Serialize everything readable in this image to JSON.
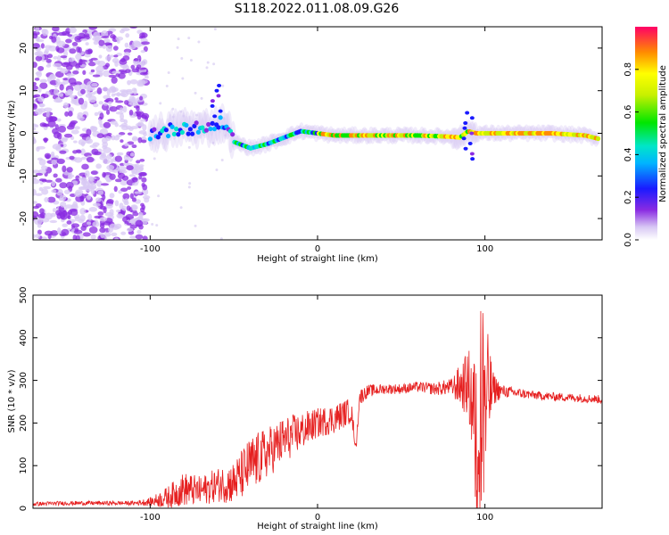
{
  "title": "S118.2022.011.08.09.G26",
  "chart_data": [
    {
      "type": "heatmap",
      "xlabel": "Height of straight line (km)",
      "ylabel": "Frequency (Hz)",
      "xlim": [
        -170,
        170
      ],
      "ylim": [
        -25,
        25
      ],
      "xticks": [
        -100,
        0,
        100
      ],
      "yticks": [
        -20,
        -10,
        0,
        10,
        20
      ],
      "colorbar": {
        "label": "Normalized spectral amplitude",
        "range": [
          0,
          1
        ],
        "ticks": [
          0.0,
          0.2,
          0.4,
          0.6,
          0.8
        ],
        "tick_labels": [
          "0.0",
          "0.2",
          "0.4",
          "0.6",
          "0.8"
        ]
      },
      "ridge": {
        "x": [
          -100,
          -90,
          -80,
          -70,
          -60,
          -55,
          -50,
          -40,
          -30,
          -20,
          -10,
          0,
          10,
          20,
          40,
          60,
          80,
          85,
          90,
          95,
          100,
          120,
          140,
          160,
          170
        ],
        "frequency": [
          0,
          0.5,
          1.5,
          1.0,
          2.0,
          2.5,
          -2.0,
          -3.5,
          -2.5,
          -1.0,
          0.5,
          0,
          -0.5,
          -0.5,
          -0.5,
          -0.5,
          -0.8,
          -1.0,
          0.5,
          0,
          0,
          0,
          0,
          -0.5,
          -1.5
        ]
      }
    },
    {
      "type": "line",
      "xlabel": "Height of straight line (km)",
      "ylabel": "SNR (10 * v/v)",
      "xlim": [
        -170,
        170
      ],
      "ylim": [
        0,
        500
      ],
      "xticks": [
        -100,
        0,
        100
      ],
      "yticks": [
        0,
        100,
        200,
        300,
        400,
        500
      ],
      "series": [
        {
          "color": "#e62020",
          "x": [
            -170,
            -150,
            -130,
            -110,
            -100,
            -90,
            -80,
            -70,
            -60,
            -50,
            -40,
            -30,
            -20,
            -10,
            0,
            10,
            20,
            23,
            25,
            30,
            40,
            50,
            60,
            70,
            80,
            90,
            95,
            100,
            105,
            110,
            120,
            130,
            140,
            150,
            160,
            170
          ],
          "y": [
            10,
            12,
            12,
            12,
            15,
            25,
            45,
            40,
            55,
            60,
            100,
            130,
            160,
            180,
            200,
            210,
            230,
            140,
            260,
            275,
            280,
            280,
            285,
            280,
            285,
            290,
            200,
            260,
            280,
            275,
            270,
            265,
            262,
            260,
            258,
            255
          ],
          "spread": [
            5,
            5,
            5,
            5,
            10,
            25,
            40,
            35,
            40,
            50,
            70,
            60,
            55,
            45,
            35,
            35,
            30,
            10,
            20,
            15,
            12,
            12,
            12,
            15,
            20,
            80,
            200,
            200,
            40,
            15,
            12,
            10,
            10,
            10,
            10,
            10
          ]
        }
      ]
    }
  ]
}
